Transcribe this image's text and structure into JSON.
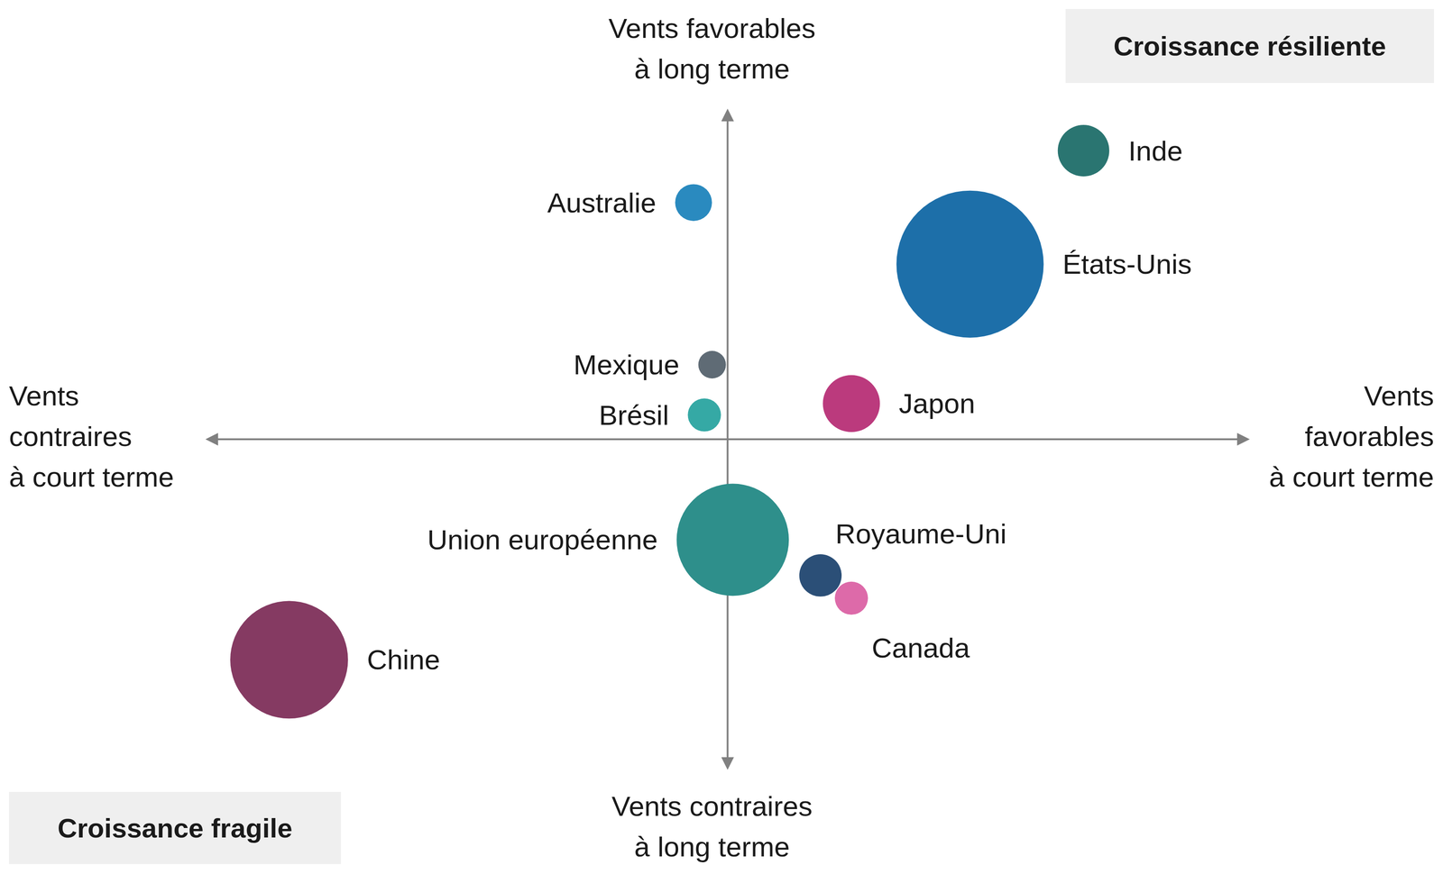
{
  "chart_data": {
    "type": "bubble",
    "labels": [
      "Inde",
      "États-Unis",
      "Australie",
      "Mexique",
      "Brésil",
      "Japon",
      "Union européenne",
      "Royaume-Uni",
      "Canada",
      "Chine"
    ],
    "x": [
      6.9,
      4.7,
      -0.66,
      -0.3,
      -0.45,
      2.4,
      0.1,
      1.8,
      2.4,
      -8.5
    ],
    "y": [
      8.9,
      5.4,
      7.3,
      2.3,
      0.75,
      1.1,
      -3.1,
      -4.2,
      -4.9,
      -6.8
    ],
    "sizes": [
      784,
      6400,
      400,
      225,
      324,
      961,
      3721,
      529,
      324,
      4096
    ],
    "colors": [
      "#2a7571",
      "#1d6fa9",
      "#2a8abf",
      "#5f6b75",
      "#35a9a5",
      "#bb3a7d",
      "#2e8f8b",
      "#2b4f77",
      "#dd6aa9",
      "#853a62"
    ],
    "xlim": [
      -10,
      10
    ],
    "ylim": [
      -10,
      10
    ],
    "xticks": [
      0
    ],
    "yticks": [
      0
    ],
    "tick_labels": false,
    "grid": false,
    "legend": "none",
    "annotations": {
      "top": "Vents favorables\nà long terme",
      "bottom": "Vents contraires\nà long terme",
      "left": "Vents\ncontraires\nà court terme",
      "right": "Vents\nfavorables\nà court terme",
      "top_right": "Croissance résiliente",
      "bottom_left": "Croissance fragile"
    }
  }
}
